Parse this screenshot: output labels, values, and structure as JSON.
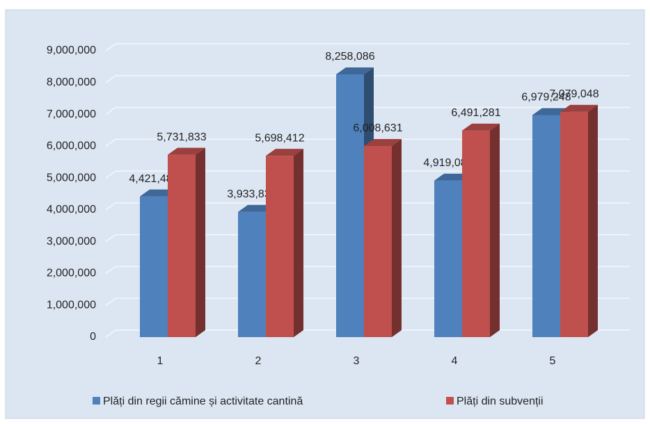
{
  "chart_data": {
    "type": "bar3d",
    "categories": [
      "1",
      "2",
      "3",
      "4",
      "5"
    ],
    "series": [
      {
        "name": "Plăți din regii cămine și activitate cantină",
        "color": "#4f81bd",
        "values": [
          4421481,
          3933831,
          8258086,
          4919083,
          6979248
        ],
        "value_labels": [
          "4,421,481",
          "3,933,831",
          "8,258,086",
          "4,919,083",
          "6,979,248"
        ]
      },
      {
        "name": "Plăți din subvenții",
        "color": "#c0504d",
        "values": [
          5731833,
          5698412,
          6008631,
          6491281,
          7079048
        ],
        "value_labels": [
          "5,731,833",
          "5,698,412",
          "6,008,631",
          "6,491,281",
          "7,079,048"
        ]
      }
    ],
    "ylim": [
      0,
      9000000
    ],
    "yticks": [
      0,
      {
        "value": 1000000,
        "label": "1,000,000"
      },
      {
        "value": 2000000,
        "label": "2,000,000"
      },
      {
        "value": 3000000,
        "label": "3,000,000"
      },
      {
        "value": 4000000,
        "label": "4,000,000"
      },
      {
        "value": 5000000,
        "label": "5,000,000"
      },
      {
        "value": 6000000,
        "label": "6,000,000"
      },
      {
        "value": 7000000,
        "label": "7,000,000"
      },
      {
        "value": 8000000,
        "label": "8,000,000"
      },
      {
        "value": 9000000,
        "label": "9,000,000"
      }
    ],
    "grid": true,
    "legend": "bottom"
  }
}
